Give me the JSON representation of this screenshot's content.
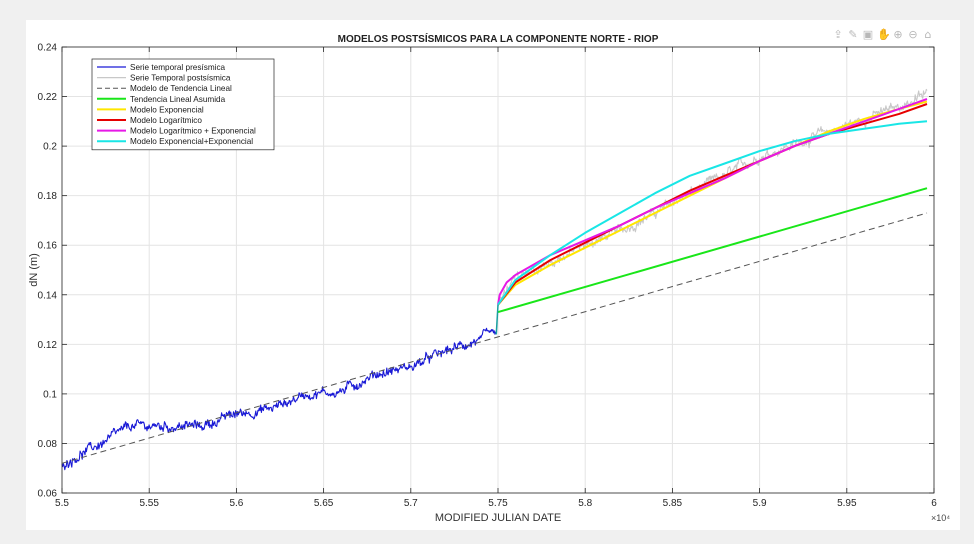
{
  "chart_data": {
    "type": "line",
    "title": "MODELOS POSTSÍSMICOS PARA LA COMPONENTE NORTE - RIOP",
    "xlabel": "MODIFIED JULIAN DATE",
    "ylabel": "dN (m)",
    "x_exponent_label": "×10⁴",
    "xlim": [
      55000,
      60000
    ],
    "ylim": [
      0.06,
      0.24
    ],
    "xticks": [
      55000,
      55500,
      56000,
      56500,
      57000,
      57500,
      58000,
      58500,
      59000,
      59500,
      60000
    ],
    "xtick_labels": [
      "5.5",
      "5.55",
      "5.6",
      "5.65",
      "5.7",
      "5.75",
      "5.8",
      "5.85",
      "5.9",
      "5.95",
      "6"
    ],
    "yticks": [
      0.06,
      0.08,
      0.1,
      0.12,
      0.14,
      0.16,
      0.18,
      0.2,
      0.22,
      0.24
    ],
    "ytick_labels": [
      "0.06",
      "0.08",
      "0.1",
      "0.12",
      "0.14",
      "0.16",
      "0.18",
      "0.2",
      "0.22",
      "0.24"
    ],
    "grid": true,
    "legend_position": "top-left",
    "series": [
      {
        "name": "Serie temporal presísmica",
        "color": "#1a1ad6",
        "style": "noisy",
        "x": [
          55000,
          55200,
          55400,
          55600,
          55800,
          56000,
          56200,
          56400,
          56600,
          56800,
          57000,
          57200,
          57400,
          57490
        ],
        "y": [
          0.072,
          0.079,
          0.087,
          0.087,
          0.087,
          0.092,
          0.094,
          0.1,
          0.101,
          0.108,
          0.111,
          0.117,
          0.122,
          0.124
        ]
      },
      {
        "name": "Serie Temporal postsísmica",
        "color": "#c8c8c8",
        "style": "noisy",
        "x": [
          57500,
          57600,
          57800,
          58000,
          58200,
          58400,
          58600,
          58800,
          59000,
          59200,
          59400,
          59600,
          59800,
          59960
        ],
        "y": [
          0.136,
          0.147,
          0.153,
          0.16,
          0.166,
          0.173,
          0.181,
          0.188,
          0.196,
          0.201,
          0.206,
          0.211,
          0.216,
          0.221
        ]
      },
      {
        "name": "Modelo de Tendencia Lineal",
        "color": "#555555",
        "style": "dashed",
        "x": [
          55000,
          57500,
          59960
        ],
        "y": [
          0.072,
          0.123,
          0.173
        ]
      },
      {
        "name": "Tendencia Lineal Asumida",
        "color": "#19e619",
        "style": "solid",
        "x": [
          57500,
          59960
        ],
        "y": [
          0.133,
          0.183
        ]
      },
      {
        "name": "Modelo Exponencial",
        "color": "#ffe600",
        "style": "solid",
        "x": [
          57500,
          57600,
          57800,
          58000,
          58200,
          58400,
          58600,
          58800,
          59000,
          59200,
          59400,
          59600,
          59800,
          59960
        ],
        "y": [
          0.136,
          0.144,
          0.152,
          0.159,
          0.166,
          0.173,
          0.18,
          0.187,
          0.194,
          0.2,
          0.206,
          0.211,
          0.215,
          0.218
        ]
      },
      {
        "name": "Modelo Logarítmico",
        "color": "#e60000",
        "style": "solid",
        "x": [
          57500,
          57600,
          57800,
          58000,
          58200,
          58400,
          58600,
          58800,
          59000,
          59200,
          59400,
          59600,
          59800,
          59960
        ],
        "y": [
          0.136,
          0.145,
          0.154,
          0.161,
          0.168,
          0.175,
          0.182,
          0.188,
          0.194,
          0.2,
          0.205,
          0.209,
          0.213,
          0.217
        ]
      },
      {
        "name": "Modelo Logarítmico + Exponencial",
        "color": "#e619e6",
        "style": "solid",
        "x": [
          57500,
          57510,
          57550,
          57600,
          57800,
          58000,
          58200,
          58400,
          58600,
          58800,
          59000,
          59200,
          59400,
          59600,
          59800,
          59960
        ],
        "y": [
          0.136,
          0.14,
          0.145,
          0.148,
          0.156,
          0.162,
          0.168,
          0.175,
          0.181,
          0.187,
          0.194,
          0.2,
          0.205,
          0.21,
          0.215,
          0.219
        ]
      },
      {
        "name": "Modelo Exponencial+Exponencial",
        "color": "#19e6e6",
        "style": "solid",
        "x": [
          57500,
          57600,
          57800,
          58000,
          58200,
          58400,
          58600,
          58800,
          59000,
          59200,
          59400,
          59600,
          59800,
          59960
        ],
        "y": [
          0.136,
          0.146,
          0.156,
          0.165,
          0.173,
          0.181,
          0.188,
          0.193,
          0.198,
          0.202,
          0.205,
          0.207,
          0.209,
          0.21
        ]
      }
    ]
  },
  "toolbar": {
    "icons": [
      "export-icon",
      "brush-icon",
      "datatip-icon",
      "pan-icon",
      "zoom-in-icon",
      "zoom-out-icon",
      "home-icon"
    ],
    "glyphs": [
      "⇪",
      "✎",
      "▣",
      "✋",
      "⊕",
      "⊖",
      "⌂"
    ]
  }
}
